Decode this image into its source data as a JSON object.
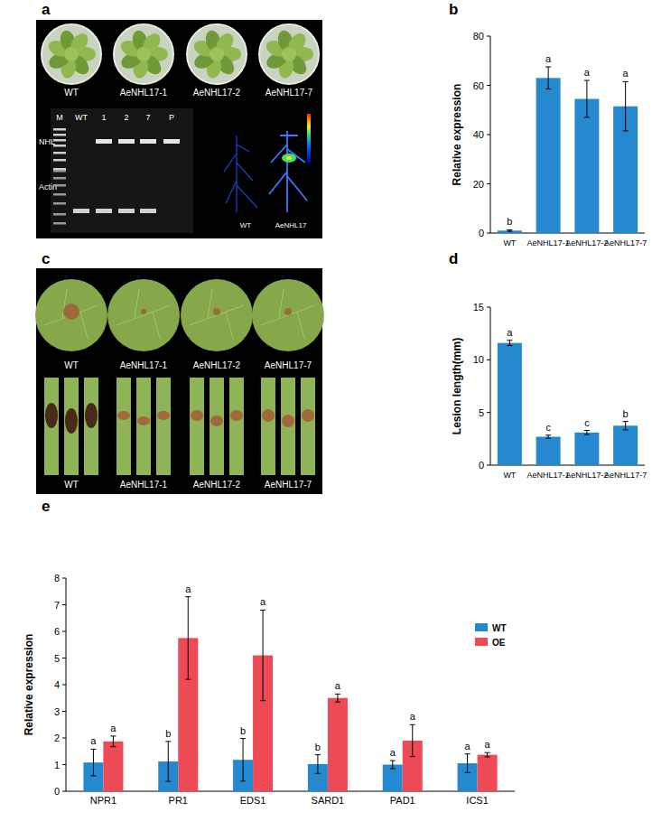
{
  "panel_labels": [
    "a",
    "b",
    "c",
    "d",
    "e"
  ],
  "panel_a": {
    "dish_labels": [
      "WT",
      "AeNHL17-1",
      "AeNHL17-2",
      "AeNHL17-7"
    ],
    "gel_lanes": [
      "M",
      "WT",
      "1",
      "2",
      "7",
      "P"
    ],
    "gel_rows": [
      "NHL",
      "Actin"
    ],
    "imaging_labels": [
      "WT",
      "AeNHL17"
    ]
  },
  "panel_c": {
    "leaf_labels": [
      "WT",
      "AeNHL17-1",
      "AeNHL17-2",
      "AeNHL17-7"
    ],
    "stem_labels": [
      "WT",
      "AeNHL17-1",
      "AeNHL17-2",
      "AeNHL17-7"
    ]
  },
  "chart_data": [
    {
      "type": "bar",
      "ylabel": "Relative expression",
      "categories": [
        "WT",
        "AeNHL17-1",
        "AeNHL17-2",
        "AeNHL17-7"
      ],
      "values": [
        1,
        63,
        54.5,
        51.5
      ],
      "errors": [
        0.3,
        4.5,
        7.5,
        10
      ],
      "significance": [
        "b",
        "a",
        "a",
        "a"
      ],
      "color": "#2589d0",
      "ylim": [
        0,
        80
      ],
      "yticks": [
        0,
        20,
        40,
        60,
        80
      ],
      "grid": false
    },
    {
      "type": "bar",
      "ylabel": "Lesion length(mm)",
      "categories": [
        "WT",
        "AeNHL17-1",
        "AeNHL17-2",
        "AeNHL17-7"
      ],
      "values": [
        11.6,
        2.7,
        3.1,
        3.75
      ],
      "errors": [
        0.25,
        0.15,
        0.2,
        0.4
      ],
      "significance": [
        "a",
        "c",
        "c",
        "b"
      ],
      "color": "#2589d0",
      "ylim": [
        0,
        15
      ],
      "yticks": [
        0,
        5,
        10,
        15
      ],
      "grid": false
    },
    {
      "type": "bar",
      "ylabel": "Relative expression",
      "categories": [
        "NPR1",
        "PR1",
        "EDS1",
        "SARD1",
        "PAD1",
        "ICS1"
      ],
      "series": [
        {
          "name": "WT",
          "color": "#2589d0",
          "values": [
            1.08,
            1.12,
            1.18,
            1.02,
            1.0,
            1.05
          ],
          "errors": [
            0.5,
            0.75,
            0.8,
            0.35,
            0.15,
            0.35
          ],
          "significance": [
            "a",
            "b",
            "b",
            "b",
            "a",
            "a"
          ]
        },
        {
          "name": "OE",
          "color": "#ee4a55",
          "values": [
            1.87,
            5.75,
            5.1,
            3.5,
            1.9,
            1.37
          ],
          "errors": [
            0.2,
            1.55,
            1.7,
            0.15,
            0.6,
            0.08
          ],
          "significance": [
            "a",
            "a",
            "a",
            "a",
            "a",
            "a"
          ]
        }
      ],
      "ylim": [
        0,
        8
      ],
      "yticks": [
        0,
        1,
        2,
        3,
        4,
        5,
        6,
        7,
        8
      ],
      "grid": false,
      "legend": "upper right"
    }
  ]
}
